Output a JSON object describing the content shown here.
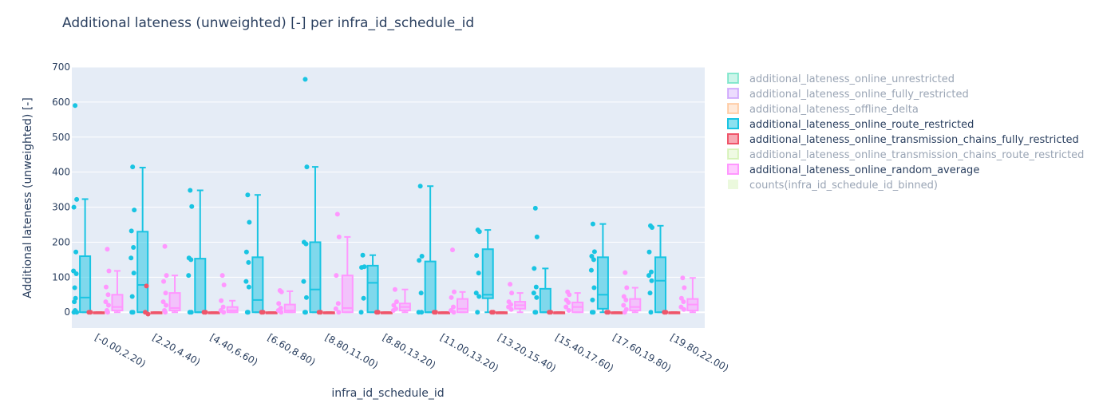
{
  "chart_data": {
    "type": "box",
    "title": "Additional lateness (unweighted) [-] per infra_id_schedule_id",
    "xlabel": "infra_id_schedule_id",
    "ylabel": "Additional lateness (unweighted) [-]",
    "ylim": [
      -45,
      700
    ],
    "yticks": [
      0,
      100,
      200,
      300,
      400,
      500,
      600,
      700
    ],
    "grid": true,
    "legend_position": "right",
    "categories": [
      "[-0.00,2.20)",
      "[2.20,4.40)",
      "[4.40,6.60)",
      "[6.60,8.80)",
      "[8.80,11.00)",
      "[8.80,13.20)",
      "[11.00,13.20)",
      "[13.20,15.40)",
      "[15.40,17.60)",
      "[17.60,19.80)",
      "[19.80,22.00)"
    ],
    "legend": [
      {
        "name": "additional_lateness_online_unrestricted",
        "color": "#19d3a2",
        "visible": false
      },
      {
        "name": "additional_lateness_online_fully_restricted",
        "color": "#ab63fa",
        "visible": false
      },
      {
        "name": "additional_lateness_offline_delta",
        "color": "#ffa15a",
        "visible": false
      },
      {
        "name": "additional_lateness_online_route_restricted",
        "color": "#19c4e2",
        "visible": true
      },
      {
        "name": "additional_lateness_online_transmission_chains_fully_restricted",
        "color": "#ef556a",
        "visible": true
      },
      {
        "name": "additional_lateness_online_transmission_chains_route_restricted",
        "color": "#b6e880",
        "visible": false
      },
      {
        "name": "additional_lateness_online_random_average",
        "color": "#ff97ff",
        "visible": true
      },
      {
        "name": "counts(infra_id_schedule_id_binned)",
        "color": "#b6e880",
        "visible": false,
        "fill": true
      }
    ],
    "series": [
      {
        "name": "additional_lateness_online_route_restricted",
        "color": "#19c4e2",
        "boxes": [
          {
            "q1": 0,
            "median": 42,
            "q3": 160,
            "lower": 0,
            "upper": 323,
            "points": [
              590,
              322,
              300,
              172,
              118,
              110,
              70,
              40,
              30,
              5,
              0,
              0
            ]
          },
          {
            "q1": 0,
            "median": 78,
            "q3": 230,
            "lower": 0,
            "upper": 413,
            "points": [
              415,
              292,
              232,
              185,
              155,
              112,
              45,
              0,
              0
            ]
          },
          {
            "q1": 0,
            "median": 0,
            "q3": 153,
            "lower": 0,
            "upper": 348,
            "points": [
              348,
              302,
              155,
              150,
              105,
              0,
              0
            ]
          },
          {
            "q1": 0,
            "median": 35,
            "q3": 157,
            "lower": 0,
            "upper": 335,
            "points": [
              335,
              257,
              172,
              142,
              88,
              72,
              0,
              0
            ]
          },
          {
            "q1": 0,
            "median": 65,
            "q3": 200,
            "lower": 0,
            "upper": 415,
            "points": [
              665,
              415,
              200,
              195,
              88,
              42,
              0,
              0
            ]
          },
          {
            "q1": 0,
            "median": 84,
            "q3": 133,
            "lower": 0,
            "upper": 163,
            "points": [
              163,
              130,
              128,
              40,
              0
            ]
          },
          {
            "q1": 0,
            "median": 0,
            "q3": 145,
            "lower": 0,
            "upper": 360,
            "points": [
              360,
              160,
              148,
              55,
              0,
              0
            ]
          },
          {
            "q1": 40,
            "median": 50,
            "q3": 180,
            "lower": 0,
            "upper": 235,
            "points": [
              235,
              230,
              162,
              112,
              55,
              45,
              0
            ]
          },
          {
            "q1": 0,
            "median": 0,
            "q3": 67,
            "lower": 0,
            "upper": 125,
            "points": [
              297,
              215,
              125,
              72,
              55,
              42,
              0,
              0
            ]
          },
          {
            "q1": 10,
            "median": 50,
            "q3": 157,
            "lower": 0,
            "upper": 252,
            "points": [
              252,
              173,
              160,
              150,
              120,
              70,
              35,
              0,
              0
            ]
          },
          {
            "q1": 0,
            "median": 90,
            "q3": 157,
            "lower": 0,
            "upper": 247,
            "points": [
              247,
              242,
              172,
              115,
              105,
              90,
              55,
              0
            ]
          }
        ]
      },
      {
        "name": "additional_lateness_online_transmission_chains_fully_restricted",
        "color": "#ef556a",
        "boxes": [
          {
            "q1": 0,
            "median": 0,
            "q3": 0,
            "lower": 0,
            "upper": 0,
            "points": [
              0,
              0
            ]
          },
          {
            "q1": 0,
            "median": 0,
            "q3": 0,
            "lower": 0,
            "upper": 0,
            "points": [
              75,
              -5,
              0
            ]
          },
          {
            "q1": 0,
            "median": 0,
            "q3": 0,
            "lower": 0,
            "upper": 0,
            "points": [
              0,
              0
            ]
          },
          {
            "q1": 0,
            "median": 0,
            "q3": 0,
            "lower": 0,
            "upper": 0,
            "points": [
              0,
              0
            ]
          },
          {
            "q1": 0,
            "median": 0,
            "q3": 0,
            "lower": 0,
            "upper": 0,
            "points": [
              0,
              0
            ]
          },
          {
            "q1": 0,
            "median": 0,
            "q3": 0,
            "lower": 0,
            "upper": 0,
            "points": [
              0,
              0
            ]
          },
          {
            "q1": 0,
            "median": 0,
            "q3": 0,
            "lower": 0,
            "upper": 0,
            "points": [
              0,
              0
            ]
          },
          {
            "q1": 0,
            "median": 0,
            "q3": 0,
            "lower": 0,
            "upper": 0,
            "points": [
              0,
              0
            ]
          },
          {
            "q1": 0,
            "median": 0,
            "q3": 0,
            "lower": 0,
            "upper": 0,
            "points": [
              0,
              0
            ]
          },
          {
            "q1": 0,
            "median": 0,
            "q3": 0,
            "lower": 0,
            "upper": 0,
            "points": [
              0,
              0
            ]
          },
          {
            "q1": 0,
            "median": 0,
            "q3": 0,
            "lower": 0,
            "upper": 0,
            "points": [
              0,
              0
            ]
          }
        ]
      },
      {
        "name": "additional_lateness_online_random_average",
        "color": "#ff97ff",
        "boxes": [
          {
            "q1": 5,
            "median": 15,
            "q3": 50,
            "lower": 0,
            "upper": 118,
            "points": [
              180,
              118,
              72,
              50,
              30,
              20,
              5,
              0
            ]
          },
          {
            "q1": 5,
            "median": 12,
            "q3": 55,
            "lower": 0,
            "upper": 105,
            "points": [
              188,
              105,
              88,
              55,
              30,
              20,
              5,
              0
            ]
          },
          {
            "q1": 0,
            "median": 5,
            "q3": 15,
            "lower": 0,
            "upper": 33,
            "points": [
              105,
              78,
              33,
              15,
              5,
              0
            ]
          },
          {
            "q1": 0,
            "median": 5,
            "q3": 22,
            "lower": 0,
            "upper": 60,
            "points": [
              62,
              58,
              25,
              12,
              5,
              0
            ]
          },
          {
            "q1": 0,
            "median": 12,
            "q3": 105,
            "lower": 0,
            "upper": 215,
            "points": [
              280,
              215,
              105,
              25,
              10,
              0
            ]
          },
          {
            "q1": 5,
            "median": 15,
            "q3": 25,
            "lower": 0,
            "upper": 65,
            "points": [
              65,
              30,
              20,
              10,
              5
            ]
          },
          {
            "q1": 0,
            "median": 10,
            "q3": 38,
            "lower": 0,
            "upper": 58,
            "points": [
              178,
              58,
              42,
              15,
              5,
              0
            ]
          },
          {
            "q1": 10,
            "median": 20,
            "q3": 30,
            "lower": 0,
            "upper": 55,
            "points": [
              80,
              55,
              30,
              22,
              15,
              8
            ]
          },
          {
            "q1": 0,
            "median": 15,
            "q3": 28,
            "lower": 0,
            "upper": 55,
            "points": [
              58,
              50,
              35,
              28,
              15,
              5
            ]
          },
          {
            "q1": 5,
            "median": 15,
            "q3": 38,
            "lower": 0,
            "upper": 70,
            "points": [
              113,
              70,
              45,
              35,
              20,
              8,
              0
            ]
          },
          {
            "q1": 5,
            "median": 22,
            "q3": 38,
            "lower": 0,
            "upper": 98,
            "points": [
              98,
              70,
              40,
              30,
              15,
              8
            ]
          }
        ]
      }
    ]
  }
}
